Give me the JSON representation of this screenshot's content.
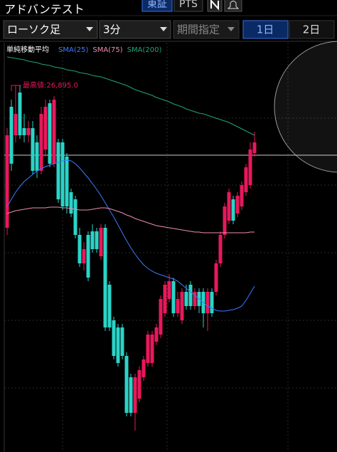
{
  "header": {
    "symbol": "アドバンテスト",
    "markets": [
      "東証",
      "PTS"
    ]
  },
  "toolbar": {
    "chart_type": "ローソク足",
    "interval": "3分",
    "period": "期間指定",
    "ranges": [
      "1日",
      "2日"
    ]
  },
  "chart_data": {
    "type": "candlestick",
    "legend_title": "単純移動平均",
    "open": [
      26695,
      26865,
      26825,
      26885,
      26835,
      26825,
      26835,
      26815,
      26775,
      26805,
      26870,
      26785,
      26815,
      26815,
      26795,
      26745,
      26735,
      26685,
      26645,
      26685,
      26690,
      26690,
      26655,
      26695,
      26615,
      26565,
      26555,
      26555,
      26515,
      26485,
      26435,
      26455,
      26485,
      26505,
      26505,
      26535,
      26545,
      26575,
      26595,
      26620,
      26575,
      26565,
      26605,
      26615,
      26585,
      26605,
      26605,
      26575,
      26605,
      26605,
      26645,
      26685,
      26705,
      26735,
      26715,
      26725,
      26745,
      26755,
      26800
    ],
    "high": [
      26835,
      26875,
      26895,
      26895,
      26855,
      26845,
      26845,
      26825,
      26865,
      26875,
      26875,
      26880,
      26820,
      26820,
      26800,
      26750,
      26740,
      26695,
      26675,
      26690,
      26700,
      26695,
      26700,
      26700,
      26620,
      26570,
      26560,
      26560,
      26520,
      26490,
      26490,
      26500,
      26515,
      26550,
      26550,
      26560,
      26600,
      26620,
      26630,
      26625,
      26605,
      26610,
      26615,
      26620,
      26610,
      26610,
      26610,
      26610,
      26610,
      26650,
      26690,
      26730,
      26750,
      26740,
      26745,
      26760,
      26785,
      26815,
      26830
    ],
    "low": [
      26685,
      26775,
      26815,
      26820,
      26815,
      26815,
      26770,
      26765,
      26770,
      26795,
      26780,
      26780,
      26730,
      26720,
      26715,
      26710,
      26680,
      26640,
      26635,
      26620,
      26660,
      26660,
      26650,
      26550,
      26550,
      26510,
      26500,
      26510,
      26430,
      26430,
      26410,
      26450,
      26480,
      26500,
      26500,
      26530,
      26540,
      26570,
      26590,
      26570,
      26570,
      26560,
      26580,
      26580,
      26580,
      26575,
      26555,
      26550,
      26570,
      26600,
      26640,
      26680,
      26700,
      26700,
      26710,
      26720,
      26740,
      26750,
      26795
    ],
    "close": [
      26825,
      26785,
      26855,
      26825,
      26825,
      26835,
      26775,
      26775,
      26855,
      26865,
      26785,
      26875,
      26735,
      26725,
      26725,
      26715,
      26685,
      26645,
      26665,
      26625,
      26665,
      26665,
      26695,
      26555,
      26555,
      26515,
      26505,
      26515,
      26435,
      26435,
      26485,
      26495,
      26510,
      26545,
      26545,
      26555,
      26595,
      26615,
      26620,
      26575,
      26595,
      26605,
      26585,
      26585,
      26605,
      26585,
      26575,
      26605,
      26575,
      26645,
      26685,
      26725,
      26745,
      26705,
      26740,
      26755,
      26780,
      26805,
      26815
    ],
    "up_color": "#e8185c",
    "down_color": "#2ad4c8",
    "series": [
      {
        "name": "SMA(25)",
        "color": "#3b7bff",
        "values": [
          26725,
          26735,
          26745,
          26753,
          26760,
          26765,
          26770,
          26775,
          26778,
          26781,
          26783,
          26785,
          26787,
          26789,
          26790,
          26789,
          26785,
          26779,
          26772,
          26765,
          26757,
          26749,
          26740,
          26730,
          26720,
          26710,
          26699,
          26688,
          26677,
          26667,
          26658,
          26650,
          26643,
          26638,
          26634,
          26631,
          26629,
          26627,
          26625,
          26623,
          26620,
          26615,
          26610,
          26605,
          26600,
          26595,
          26590,
          26585,
          26582,
          26579,
          26578,
          26578,
          26579,
          26580,
          26582,
          26585,
          26593,
          26603,
          26613
        ]
      },
      {
        "name": "SMA(75)",
        "color": "#f08cb0",
        "values": [
          26715,
          26717,
          26719,
          26720,
          26721,
          26722,
          26723,
          26723,
          26723,
          26723,
          26724,
          26724,
          26724,
          26723,
          26723,
          26722,
          26721,
          26720,
          26720,
          26720,
          26721,
          26722,
          26723,
          26723,
          26722,
          26720,
          26718,
          26716,
          26713,
          26711,
          26708,
          26706,
          26704,
          26702,
          26700,
          26698,
          26697,
          26696,
          26695,
          26694,
          26693,
          26692,
          26691,
          26690,
          26689,
          26689,
          26688,
          26688,
          26688,
          26688,
          26688,
          26688,
          26688,
          26688,
          26688,
          26688,
          26688,
          26689,
          26689
        ]
      },
      {
        "name": "SMA(200)",
        "color": "#1fa37a",
        "values": [
          26935,
          26934,
          26933,
          26932,
          26931,
          26929,
          26928,
          26927,
          26925,
          26924,
          26923,
          26921,
          26920,
          26919,
          26917,
          26916,
          26915,
          26913,
          26912,
          26911,
          26909,
          26908,
          26907,
          26905,
          26903,
          26901,
          26899,
          26897,
          26895,
          26892,
          26889,
          26887,
          26885,
          26883,
          26881,
          26878,
          26876,
          26874,
          26872,
          26869,
          26867,
          26865,
          26862,
          26860,
          26858,
          26856,
          26855,
          26853,
          26851,
          26849,
          26847,
          26845,
          26843,
          26840,
          26837,
          26834,
          26831,
          26828,
          26825
        ]
      }
    ],
    "high_label": {
      "text": "最高値:26,895.0",
      "value": 26895
    },
    "price_line": 26797,
    "ylim": [
      26380,
      26955
    ]
  }
}
